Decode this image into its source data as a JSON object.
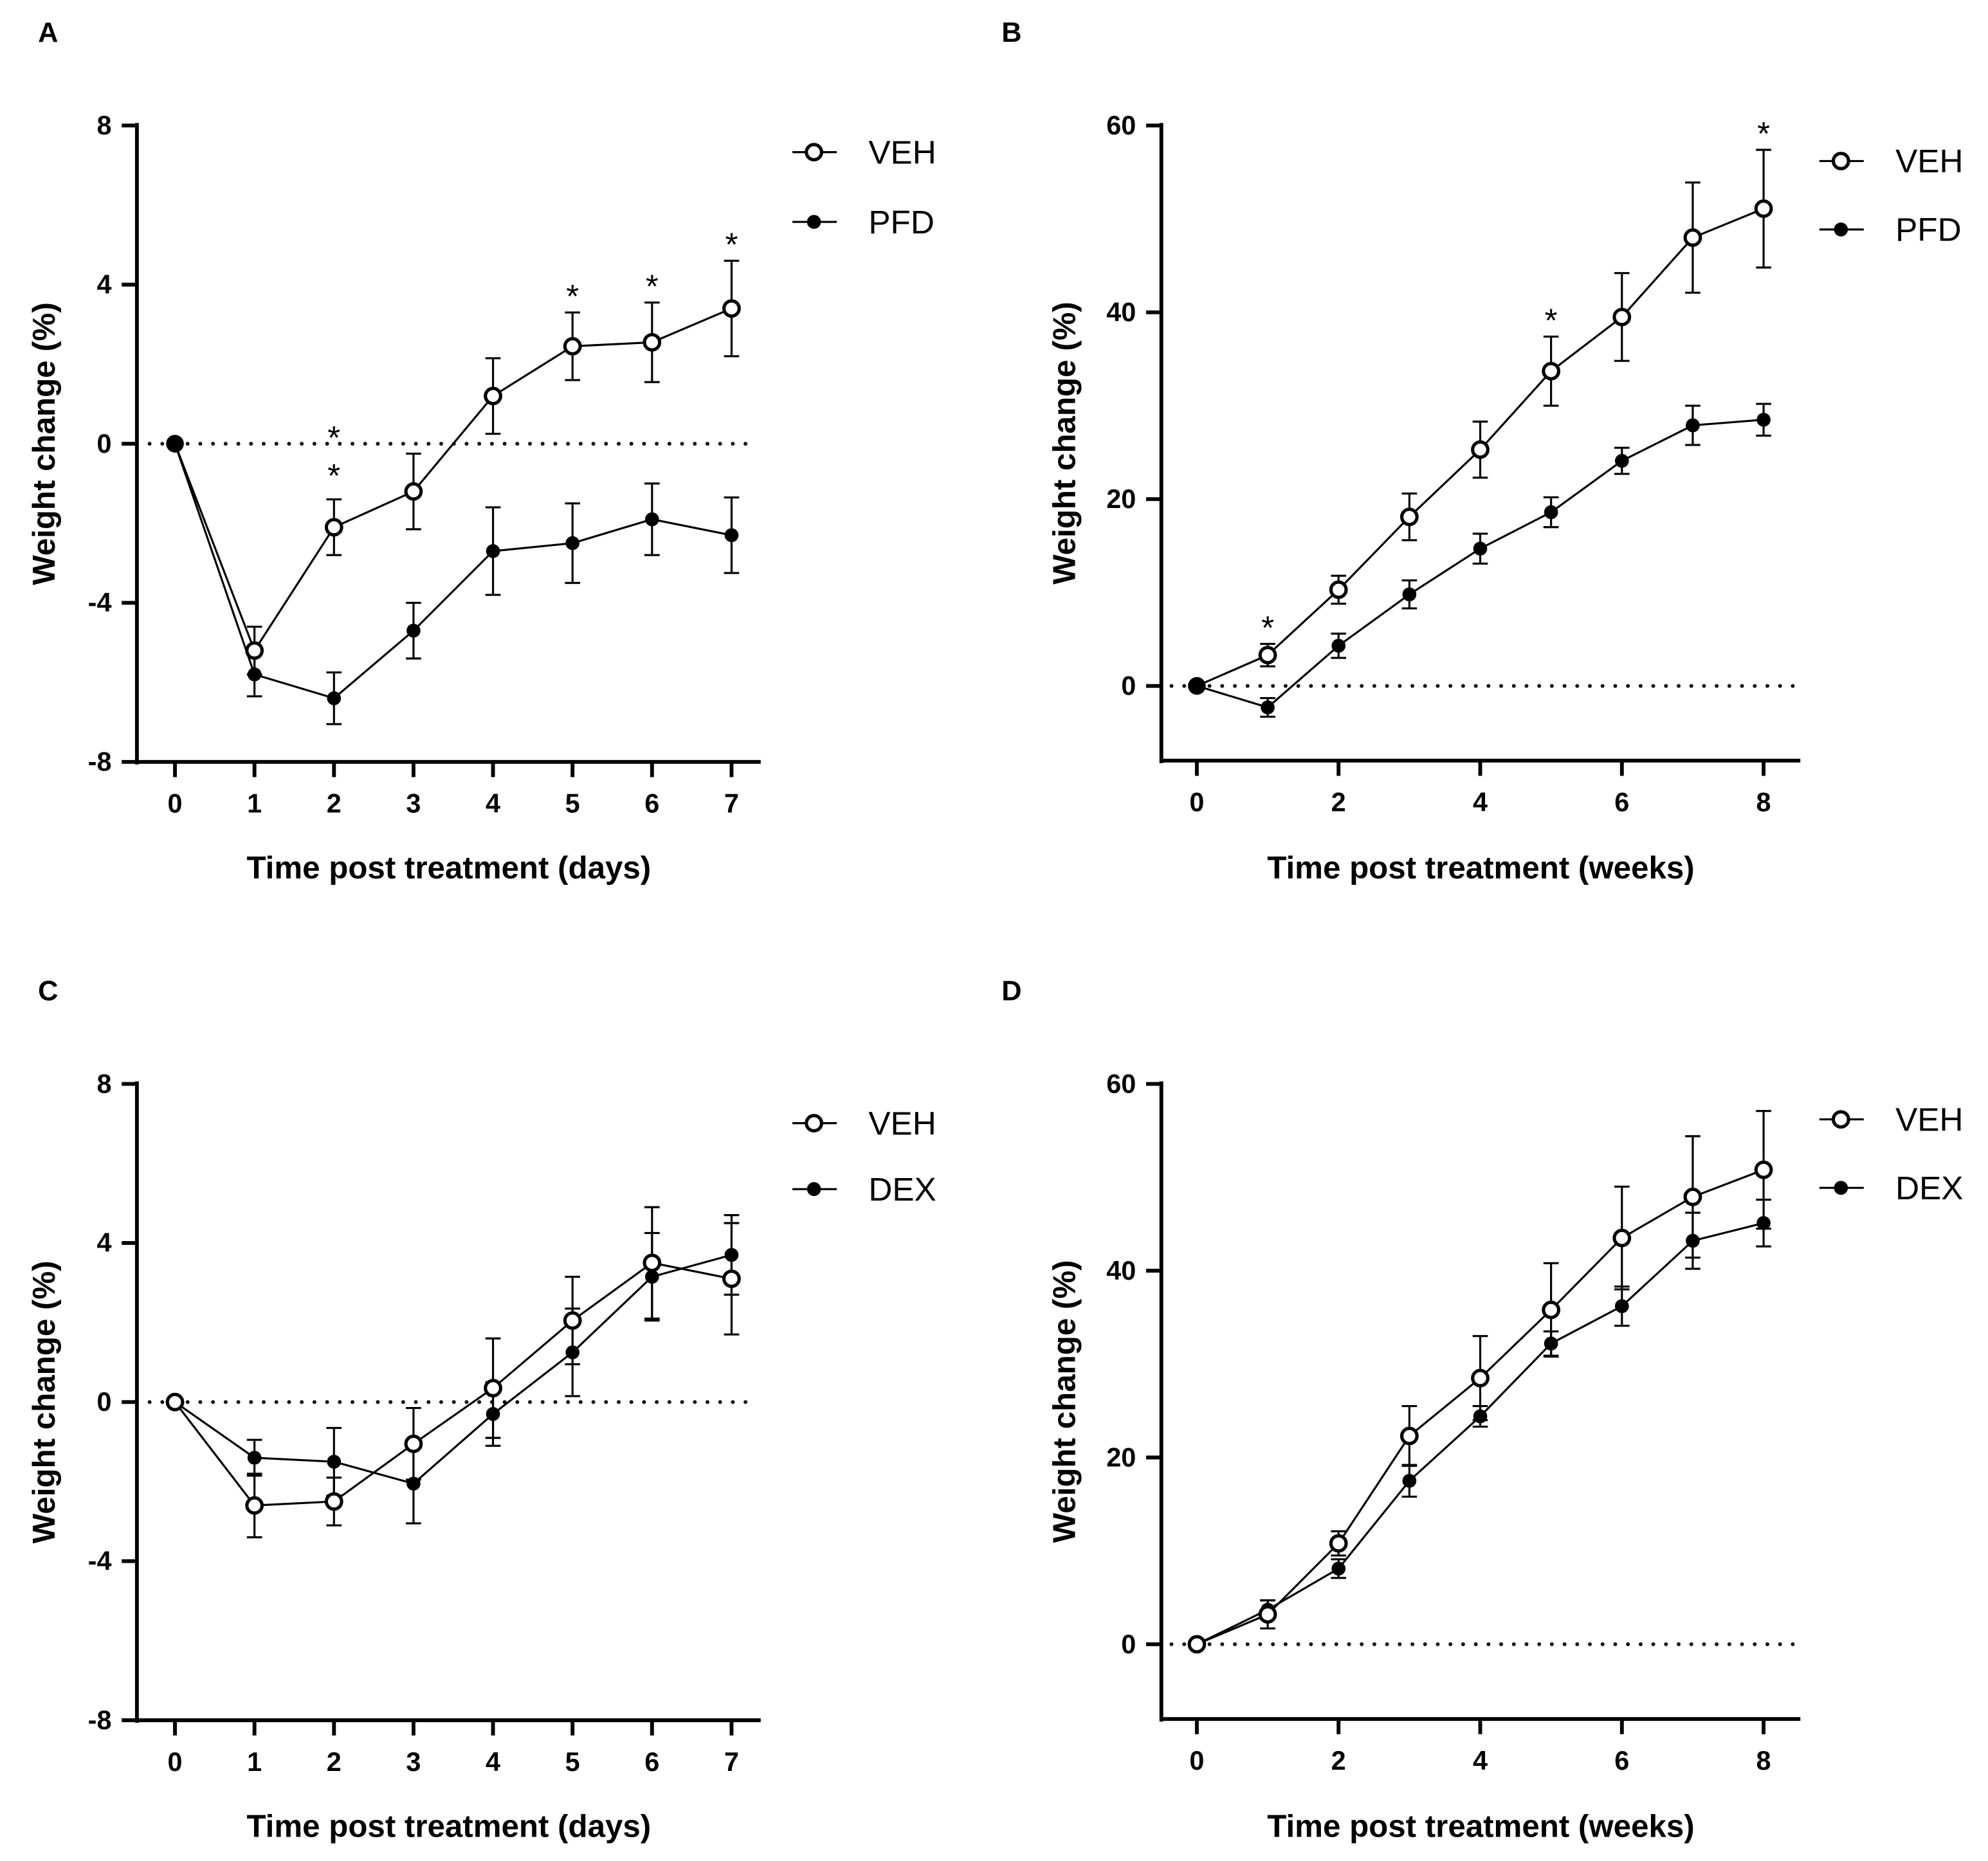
{
  "chart_data": [
    {
      "panel": "A",
      "type": "line",
      "xlabel": "Time post treatment (days)",
      "ylabel": "Weight change (%)",
      "xlim": [
        0,
        7
      ],
      "ylim": [
        -8,
        8
      ],
      "xticks": [
        0,
        1,
        2,
        3,
        4,
        5,
        6,
        7
      ],
      "yticks": [
        -8,
        -4,
        0,
        4,
        8
      ],
      "x": [
        0,
        1,
        2,
        3,
        4,
        5,
        6,
        7
      ],
      "series": [
        {
          "name": "VEH",
          "marker": "open",
          "values": [
            0,
            -5.2,
            -2.1,
            -1.2,
            1.2,
            2.45,
            2.55,
            3.4
          ],
          "errors": [
            0,
            0.6,
            0.7,
            0.95,
            0.95,
            0.85,
            1.0,
            1.2
          ]
        },
        {
          "name": "PFD",
          "marker": "filled",
          "values": [
            0,
            -5.8,
            -6.4,
            -4.7,
            -2.7,
            -2.5,
            -1.9,
            -2.3
          ],
          "errors": [
            0,
            0.55,
            0.65,
            0.7,
            1.1,
            1.0,
            0.9,
            0.95
          ]
        }
      ],
      "annotations": [
        {
          "x": 2,
          "text": "**"
        },
        {
          "x": 5,
          "text": "*"
        },
        {
          "x": 6,
          "text": "*"
        },
        {
          "x": 7,
          "text": "*"
        }
      ],
      "legend": "top-right",
      "reference_line": 0
    },
    {
      "panel": "B",
      "type": "line",
      "xlabel": "Time post treatment (weeks)",
      "ylabel": "Weight change (%)",
      "xlim": [
        0,
        8
      ],
      "ylim": [
        -8,
        60
      ],
      "xticks": [
        0,
        2,
        4,
        6,
        8
      ],
      "yticks": [
        0,
        20,
        40,
        60
      ],
      "x": [
        0,
        1,
        2,
        3,
        4,
        5,
        6,
        7,
        8
      ],
      "series": [
        {
          "name": "VEH",
          "marker": "open",
          "values": [
            0,
            3.3,
            10.3,
            18.1,
            25.3,
            33.7,
            39.5,
            48,
            51.1
          ],
          "errors": [
            0,
            1.2,
            1.5,
            2.5,
            3.0,
            3.7,
            4.7,
            5.9,
            6.3
          ]
        },
        {
          "name": "PFD",
          "marker": "filled",
          "values": [
            0,
            -2.3,
            4.3,
            9.8,
            14.7,
            18.6,
            24.1,
            27.9,
            28.5
          ],
          "errors": [
            0,
            1.0,
            1.3,
            1.5,
            1.6,
            1.6,
            1.4,
            2.1,
            1.7
          ]
        }
      ],
      "annotations": [
        {
          "x": 1,
          "text": "*"
        },
        {
          "x": 5,
          "text": "*"
        },
        {
          "x": 8,
          "text": "*"
        }
      ],
      "legend": "top-right",
      "reference_line": 0
    },
    {
      "panel": "C",
      "type": "line",
      "xlabel": "Time post treatment (days)",
      "ylabel": "Weight change (%)",
      "xlim": [
        0,
        7
      ],
      "ylim": [
        -8,
        8
      ],
      "xticks": [
        0,
        1,
        2,
        3,
        4,
        5,
        6,
        7
      ],
      "yticks": [
        -8,
        -4,
        0,
        4,
        8
      ],
      "x": [
        0,
        1,
        2,
        3,
        4,
        5,
        6,
        7
      ],
      "series": [
        {
          "name": "VEH",
          "marker": "open",
          "values": [
            0,
            -2.6,
            -2.5,
            -1.05,
            0.35,
            2.05,
            3.5,
            3.1
          ],
          "errors": [
            0,
            0.8,
            0.6,
            0.9,
            1.25,
            1.1,
            1.4,
            1.4
          ]
        },
        {
          "name": "DEX",
          "marker": "filled",
          "values": [
            0,
            -1.4,
            -1.5,
            -2.05,
            -0.3,
            1.25,
            3.15,
            3.7
          ],
          "errors": [
            0,
            0.45,
            0.85,
            1.0,
            0.8,
            1.1,
            1.1,
            1.0
          ]
        }
      ],
      "annotations": [],
      "legend": "top-right",
      "reference_line": 0
    },
    {
      "panel": "D",
      "type": "line",
      "xlabel": "Time post treatment (weeks)",
      "ylabel": "Weight change (%)",
      "xlim": [
        0,
        8
      ],
      "ylim": [
        -8,
        60
      ],
      "xticks": [
        0,
        2,
        4,
        6,
        8
      ],
      "yticks": [
        0,
        20,
        40,
        60
      ],
      "x": [
        0,
        1,
        2,
        3,
        4,
        5,
        6,
        7,
        8
      ],
      "series": [
        {
          "name": "VEH",
          "marker": "open",
          "values": [
            0,
            3.2,
            10.8,
            22.3,
            28.5,
            35.8,
            43.5,
            47.9,
            50.8
          ],
          "errors": [
            0,
            1.5,
            1.3,
            3.2,
            4.5,
            5.0,
            5.5,
            6.5,
            6.3
          ]
        },
        {
          "name": "DEX",
          "marker": "filled",
          "values": [
            0,
            3.7,
            8.1,
            17.5,
            24.4,
            32.2,
            36.2,
            43.2,
            45.1
          ],
          "errors": [
            0,
            1.0,
            1.0,
            1.7,
            1.1,
            1.3,
            2.1,
            3.0,
            2.5
          ]
        }
      ],
      "annotations": [],
      "legend": "top-right",
      "reference_line": 0
    }
  ]
}
